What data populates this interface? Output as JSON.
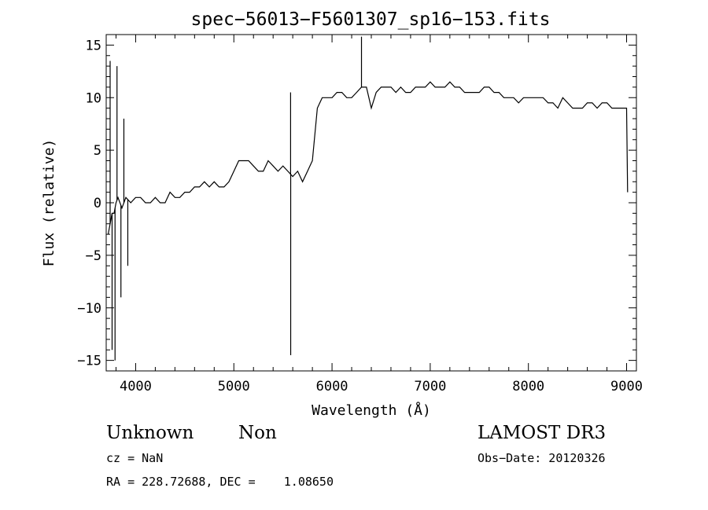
{
  "chart_data": {
    "type": "line",
    "title": "spec−56013−F5601307_sp16−153.fits",
    "xlabel": "Wavelength (Å)",
    "ylabel": "Flux (relative)",
    "xlim": [
      3700,
      9100
    ],
    "ylim": [
      -16,
      16
    ],
    "xticks": [
      4000,
      5000,
      6000,
      7000,
      8000,
      9000
    ],
    "yticks": [
      -15,
      -10,
      -5,
      0,
      5,
      10,
      15
    ],
    "ytick_labels": [
      "−15",
      "−10",
      "−5",
      "0",
      "5",
      "10",
      "15"
    ],
    "grid": false,
    "legend": "none",
    "line_color": "#000000",
    "series": [
      {
        "x": [
          3720,
          3740,
          3760,
          3780,
          3800,
          3820,
          3840,
          3860,
          3880,
          3900,
          3950,
          4000,
          4050,
          4100,
          4150,
          4200,
          4250,
          4300,
          4350,
          4400,
          4450,
          4500,
          4550,
          4600,
          4650,
          4700,
          4750,
          4800,
          4850,
          4900,
          4950,
          5000,
          5050,
          5100,
          5150,
          5200,
          5250,
          5300,
          5350,
          5400,
          5450,
          5500,
          5550,
          5600,
          5650,
          5700,
          5750,
          5800,
          5850,
          5900,
          5950,
          6000,
          6050,
          6100,
          6150,
          6200,
          6250,
          6300,
          6350,
          6400,
          6450,
          6500,
          6550,
          6600,
          6650,
          6700,
          6750,
          6800,
          6850,
          6900,
          6950,
          7000,
          7050,
          7100,
          7150,
          7200,
          7250,
          7300,
          7350,
          7400,
          7450,
          7500,
          7550,
          7600,
          7650,
          7700,
          7750,
          7800,
          7850,
          7900,
          7950,
          8000,
          8050,
          8100,
          8150,
          8200,
          8250,
          8300,
          8350,
          8400,
          8450,
          8500,
          8550,
          8600,
          8650,
          8700,
          8750,
          8800,
          8850,
          8900,
          8950,
          9000,
          9010
        ],
        "y": [
          -3,
          -2,
          -1,
          -1,
          0,
          0.5,
          0,
          -0.5,
          0,
          0.5,
          0,
          0.5,
          0.5,
          0,
          0,
          0.5,
          0,
          0,
          1,
          0.5,
          0.5,
          1,
          1,
          1.5,
          1.5,
          2,
          1.5,
          2,
          1.5,
          1.5,
          2,
          3,
          4,
          4,
          4,
          3.5,
          3,
          3,
          4,
          3.5,
          3,
          3.5,
          3,
          2.5,
          3,
          2,
          3,
          4,
          9,
          10,
          10,
          10,
          10.5,
          10.5,
          10,
          10,
          10.5,
          11,
          11,
          9,
          10.5,
          11,
          11,
          11,
          10.5,
          11,
          10.5,
          10.5,
          11,
          11,
          11,
          11.5,
          11,
          11,
          11,
          11.5,
          11,
          11,
          10.5,
          10.5,
          10.5,
          10.5,
          11,
          11,
          10.5,
          10.5,
          10,
          10,
          10,
          9.5,
          10,
          10,
          10,
          10,
          10,
          9.5,
          9.5,
          9,
          10,
          9.5,
          9,
          9,
          9,
          9.5,
          9.5,
          9,
          9.5,
          9.5,
          9,
          9,
          9,
          9,
          1
        ]
      }
    ],
    "features": [
      {
        "x": 3740,
        "y": 13.5
      },
      {
        "x": 3760,
        "y": -14
      },
      {
        "x": 3790,
        "y": -15
      },
      {
        "x": 3810,
        "y": 13
      },
      {
        "x": 3850,
        "y": -9
      },
      {
        "x": 3880,
        "y": 8
      },
      {
        "x": 3920,
        "y": -6
      },
      {
        "x": 5578,
        "y": 10.5
      },
      {
        "x": 5579,
        "y": -14.5
      },
      {
        "x": 6300,
        "y": 15.8
      }
    ]
  },
  "info": {
    "object_class": "Unknown",
    "object_subclass": "Non",
    "survey": "LAMOST DR3",
    "redshift": "cz = NaN",
    "obs_date": "Obs−Date: 20120326",
    "coordinates": "RA = 228.72688, DEC =    1.08650"
  }
}
